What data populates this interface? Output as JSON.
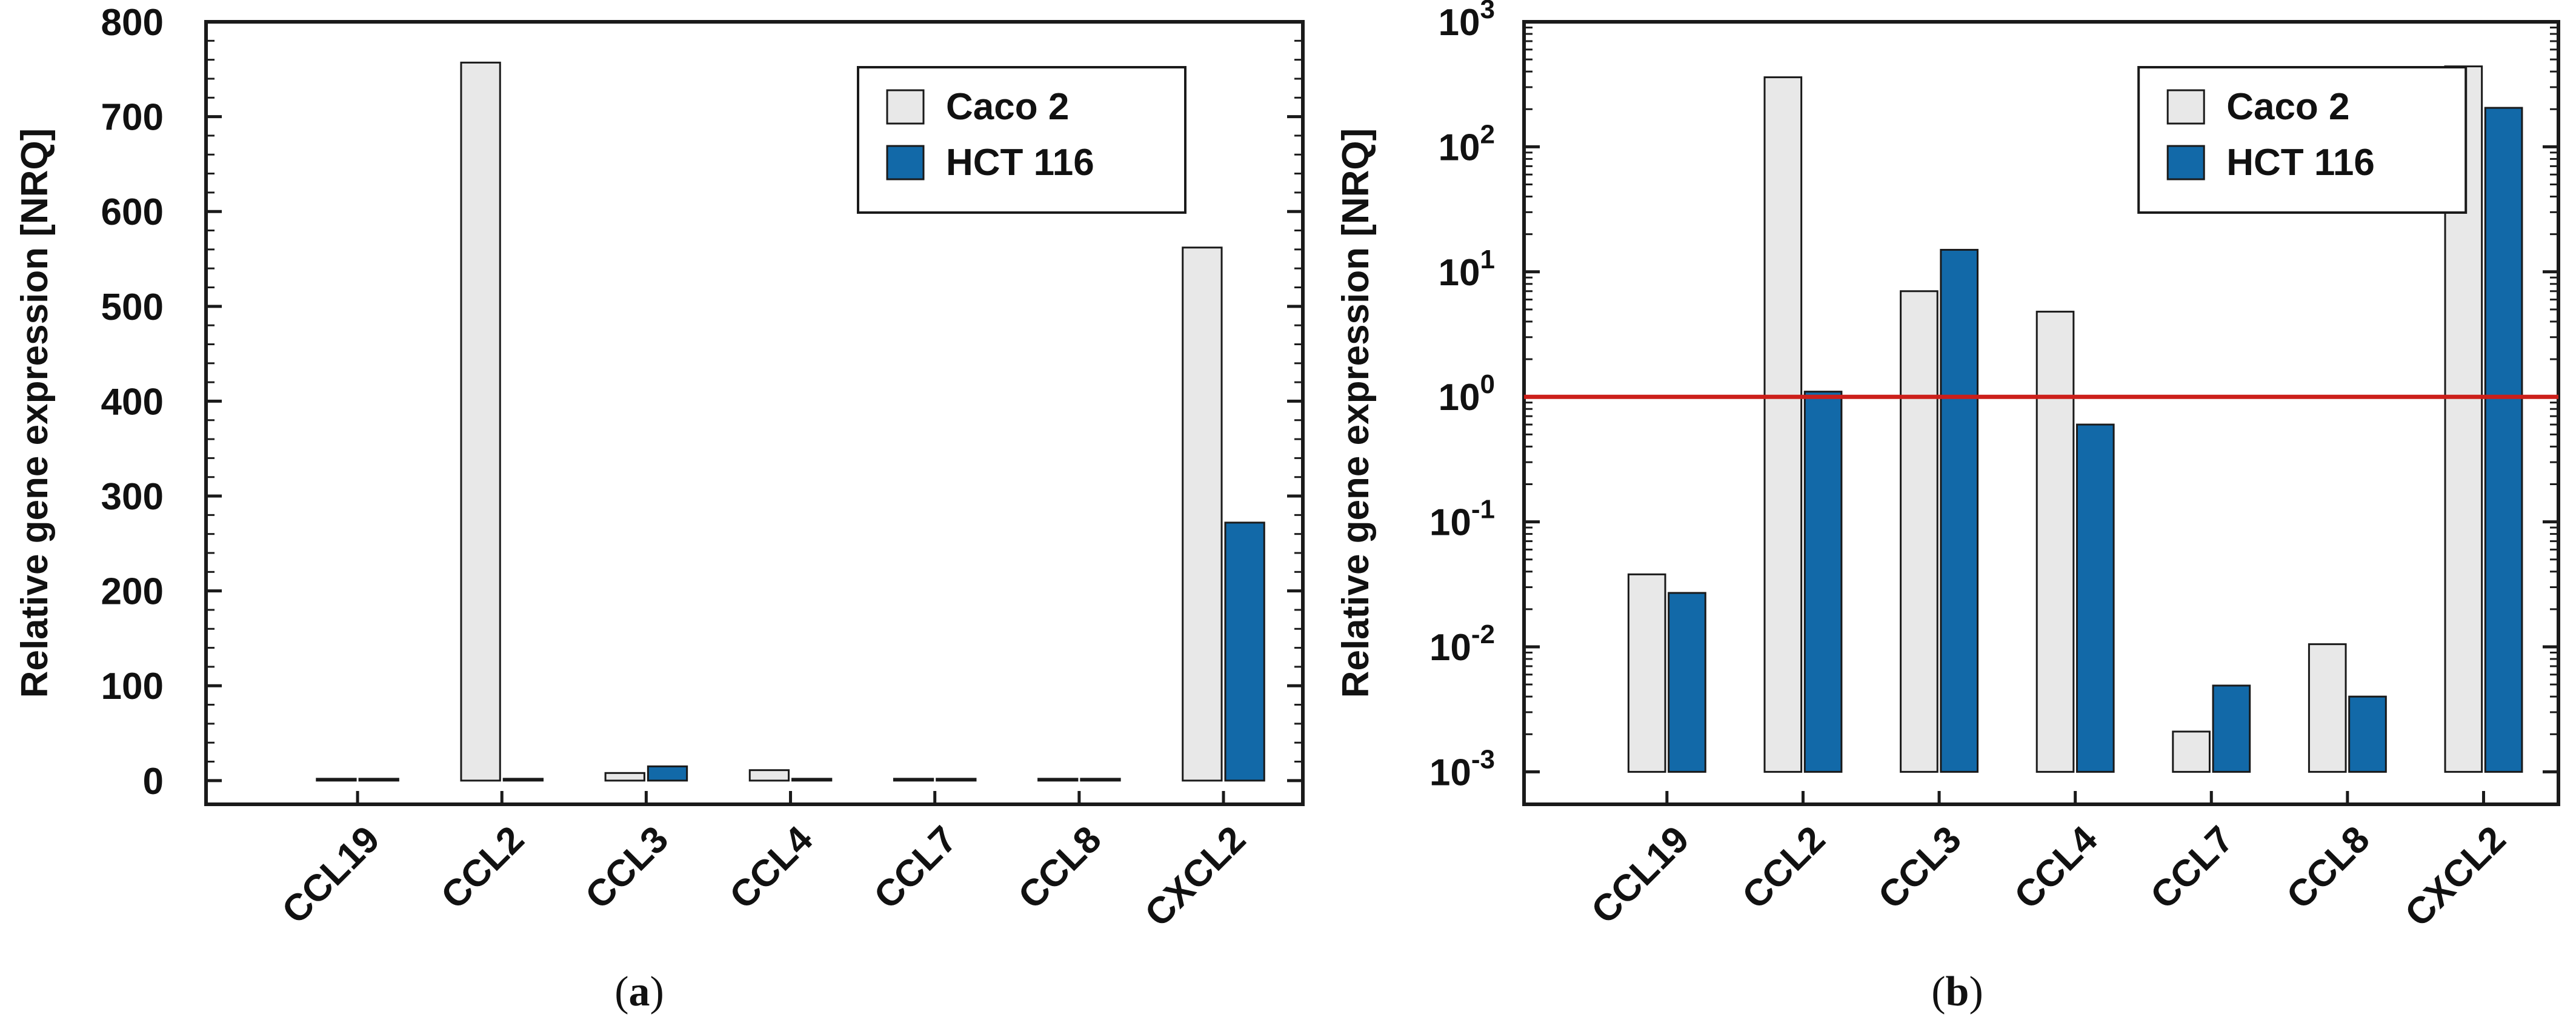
{
  "colors": {
    "caco2": "#e8e8e8",
    "hct116": "#1269a8",
    "reference_line": "#cc1f1a",
    "axis": "#1a1a1a"
  },
  "chart_data": [
    {
      "id": "a",
      "type": "bar",
      "scale": "linear",
      "caption_letter": "a",
      "title": "",
      "xlabel": "",
      "ylabel": "Relative gene expression [NRQ]",
      "ylim": [
        -25,
        800
      ],
      "yticks": [
        0,
        100,
        200,
        300,
        400,
        500,
        600,
        700,
        800
      ],
      "ytick_labels": [
        "0",
        "100",
        "200",
        "300",
        "400",
        "500",
        "600",
        "700",
        "800"
      ],
      "categories": [
        "CCL19",
        "CCL2",
        "CCL3",
        "CCL4",
        "CCL7",
        "CCL8",
        "CXCL2"
      ],
      "series": [
        {
          "name": "Caco 2",
          "values": [
            0.04,
            757,
            8,
            11,
            0.002,
            0.011,
            562
          ]
        },
        {
          "name": "HCT 116",
          "values": [
            0.027,
            1.1,
            15,
            0.6,
            0.005,
            0.004,
            272
          ]
        }
      ],
      "legend": [
        "Caco 2",
        "HCT 116"
      ],
      "legend_position": "top-right",
      "grid": false
    },
    {
      "id": "b",
      "type": "bar",
      "scale": "log",
      "caption_letter": "b",
      "title": "",
      "xlabel": "",
      "ylabel": "Relative gene expression [NRQ]",
      "ylim": [
        0.00055,
        1000
      ],
      "bar_baseline": 0.001,
      "yticks": [
        0.001,
        0.01,
        0.1,
        1,
        10,
        100,
        1000
      ],
      "ytick_base": "10",
      "ytick_exponents": [
        "-3",
        "-2",
        "-1",
        "0",
        "1",
        "2",
        "3"
      ],
      "reference_line": 1,
      "categories": [
        "CCL19",
        "CCL2",
        "CCL3",
        "CCL4",
        "CCL7",
        "CCL8",
        "CXCL2"
      ],
      "series": [
        {
          "name": "Caco 2",
          "values": [
            0.038,
            360,
            7,
            4.8,
            0.0021,
            0.0105,
            440
          ]
        },
        {
          "name": "HCT 116",
          "values": [
            0.027,
            1.1,
            15,
            0.6,
            0.0049,
            0.004,
            205
          ]
        }
      ],
      "legend": [
        "Caco 2",
        "HCT 116"
      ],
      "legend_position": "top-right",
      "grid": false
    }
  ]
}
